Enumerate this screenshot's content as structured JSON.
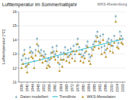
{
  "chart_data": {
    "type": "scatter",
    "title": "Lufttemperatur im Sommerhalbjahr",
    "subtitle": "WKS-Riedenburg",
    "y_label": "Lufttemperatur [°C]",
    "x": [
      1936,
      1937,
      1938,
      1939,
      1940,
      1941,
      1942,
      1943,
      1944,
      1945,
      1946,
      1947,
      1948,
      1949,
      1950,
      1951,
      1952,
      1953,
      1954,
      1955,
      1956,
      1957,
      1958,
      1959,
      1960,
      1961,
      1962,
      1963,
      1964,
      1965,
      1966,
      1967,
      1968,
      1969,
      1970,
      1971,
      1972,
      1973,
      1974,
      1975,
      1976,
      1977,
      1978,
      1979,
      1980,
      1981,
      1982,
      1983,
      1984,
      1985,
      1986,
      1987,
      1988,
      1989,
      1990,
      1991,
      1992,
      1993,
      1994,
      1995,
      1996,
      1997,
      1998,
      1999,
      2000,
      2001,
      2002,
      2003,
      2004,
      2005,
      2006,
      2007,
      2008
    ],
    "series": [
      {
        "name": "Daten modelliert",
        "type": "scatter",
        "marker": "triangle",
        "color": "#7aaabb",
        "values": [
          12.6,
          12.9,
          13.3,
          12.7,
          12.2,
          12.7,
          13.5,
          13.2,
          13.1,
          12.5,
          13.3,
          14.1,
          13.6,
          13.1,
          13.3,
          12.9,
          13.2,
          13.0,
          12.5,
          12.7,
          12.6,
          13.1,
          13.5,
          13.2,
          13.0,
          13.6,
          12.8,
          12.3,
          13.1,
          12.6,
          13.1,
          13.5,
          13.0,
          13.3,
          12.9,
          13.4,
          13.2,
          13.6,
          13.0,
          13.7,
          14.1,
          13.5,
          13.0,
          13.3,
          12.9,
          13.1,
          13.6,
          13.9,
          13.0,
          12.8,
          13.4,
          13.7,
          13.9,
          14.3,
          14.6,
          13.9,
          14.3,
          13.5,
          14.4,
          13.6,
          13.3,
          13.9,
          14.1,
          13.7,
          14.0,
          13.6,
          14.3,
          15.7,
          14.0,
          13.8,
          14.6,
          14.3,
          14.1
        ]
      },
      {
        "name": "Trendlinie",
        "type": "line",
        "line_style": "solid",
        "color": "#30c0d0",
        "x": [
          1936,
          2008
        ],
        "values": [
          12.25,
          14.05
        ]
      },
      {
        "name": "WKS-Messdaten",
        "type": "scatter",
        "marker": "triangle",
        "color": "#bb9020",
        "values": [
          12.0,
          12.3,
          13.0,
          12.1,
          11.7,
          12.3,
          13.1,
          12.8,
          12.7,
          12.0,
          12.9,
          13.7,
          13.2,
          12.6,
          12.9,
          12.4,
          12.8,
          12.5,
          12.0,
          12.2,
          12.1,
          12.7,
          13.1,
          12.8,
          12.6,
          13.2,
          12.4,
          11.8,
          12.6,
          12.1,
          12.6,
          13.0,
          12.5,
          12.8,
          12.4,
          13.0,
          12.7,
          13.2,
          12.5,
          13.2,
          13.7,
          13.0,
          12.5,
          12.8,
          12.4,
          12.7,
          13.2,
          13.5,
          12.5,
          12.3,
          12.9,
          13.3,
          13.5,
          13.9,
          14.2,
          13.4,
          13.8,
          13.0,
          14.0,
          13.1,
          12.8,
          13.4,
          13.7,
          13.2,
          13.6,
          13.1,
          13.8,
          15.3,
          13.5,
          13.4,
          14.1,
          13.8,
          13.7
        ]
      }
    ],
    "xlim": [
      1934,
      2010
    ],
    "xticks": [
      1936,
      1940,
      1944,
      1948,
      1952,
      1956,
      1960,
      1964,
      1968,
      1972,
      1976,
      1980,
      1984,
      1988,
      1992,
      1996,
      2000,
      2004,
      2008
    ],
    "ylim": [
      11.0,
      16.0
    ],
    "yticks": [
      11,
      12,
      13,
      14,
      15,
      16
    ],
    "grid": true,
    "legend": "bottom"
  }
}
